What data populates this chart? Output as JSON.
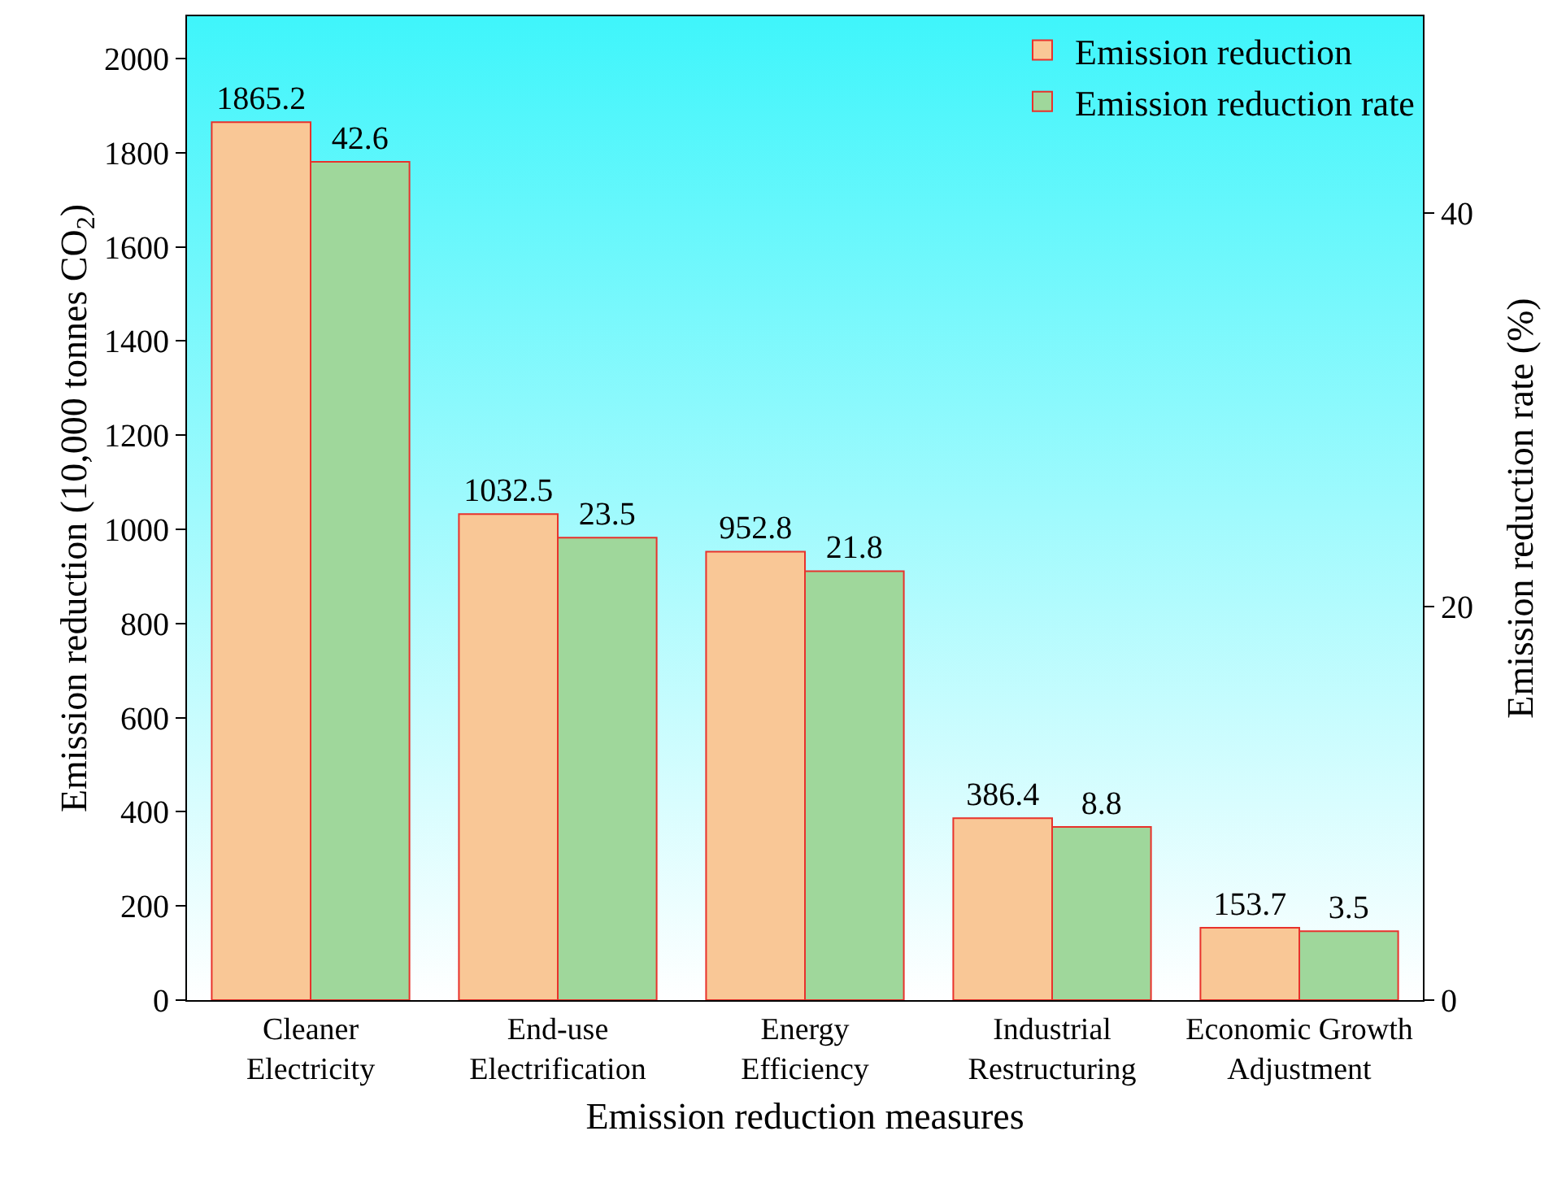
{
  "chart_data": {
    "type": "bar",
    "xlabel": "Emission reduction measures",
    "ylabel": "Emission reduction (10,000 tonnes CO$_{2}$)",
    "y2label": "Emission reduction rate (%)",
    "categories": [
      "Cleaner Electricity",
      "End-use Electrification",
      "Energy Efficiency",
      "Industrial Restructuring",
      "Economic Growth Adjustment"
    ],
    "series": [
      {
        "name": "Emission reduction",
        "color": "#f9c796",
        "values": [
          1865.2,
          1032.5,
          952.8,
          386.4,
          153.7
        ]
      },
      {
        "name": "Emission reduction rate",
        "color": "#9fd79b",
        "axis": "y2",
        "values": [
          42.6,
          23.5,
          21.8,
          8.8,
          3.5
        ]
      }
    ],
    "ylim": [
      0,
      2090
    ],
    "yticks": [
      0,
      200,
      400,
      600,
      800,
      1000,
      1200,
      1400,
      1600,
      1800,
      2000
    ],
    "y2lim": [
      0,
      50
    ],
    "y2ticks": [
      0,
      20,
      40
    ],
    "data_labels": true,
    "legend": "top right",
    "grid": false
  }
}
